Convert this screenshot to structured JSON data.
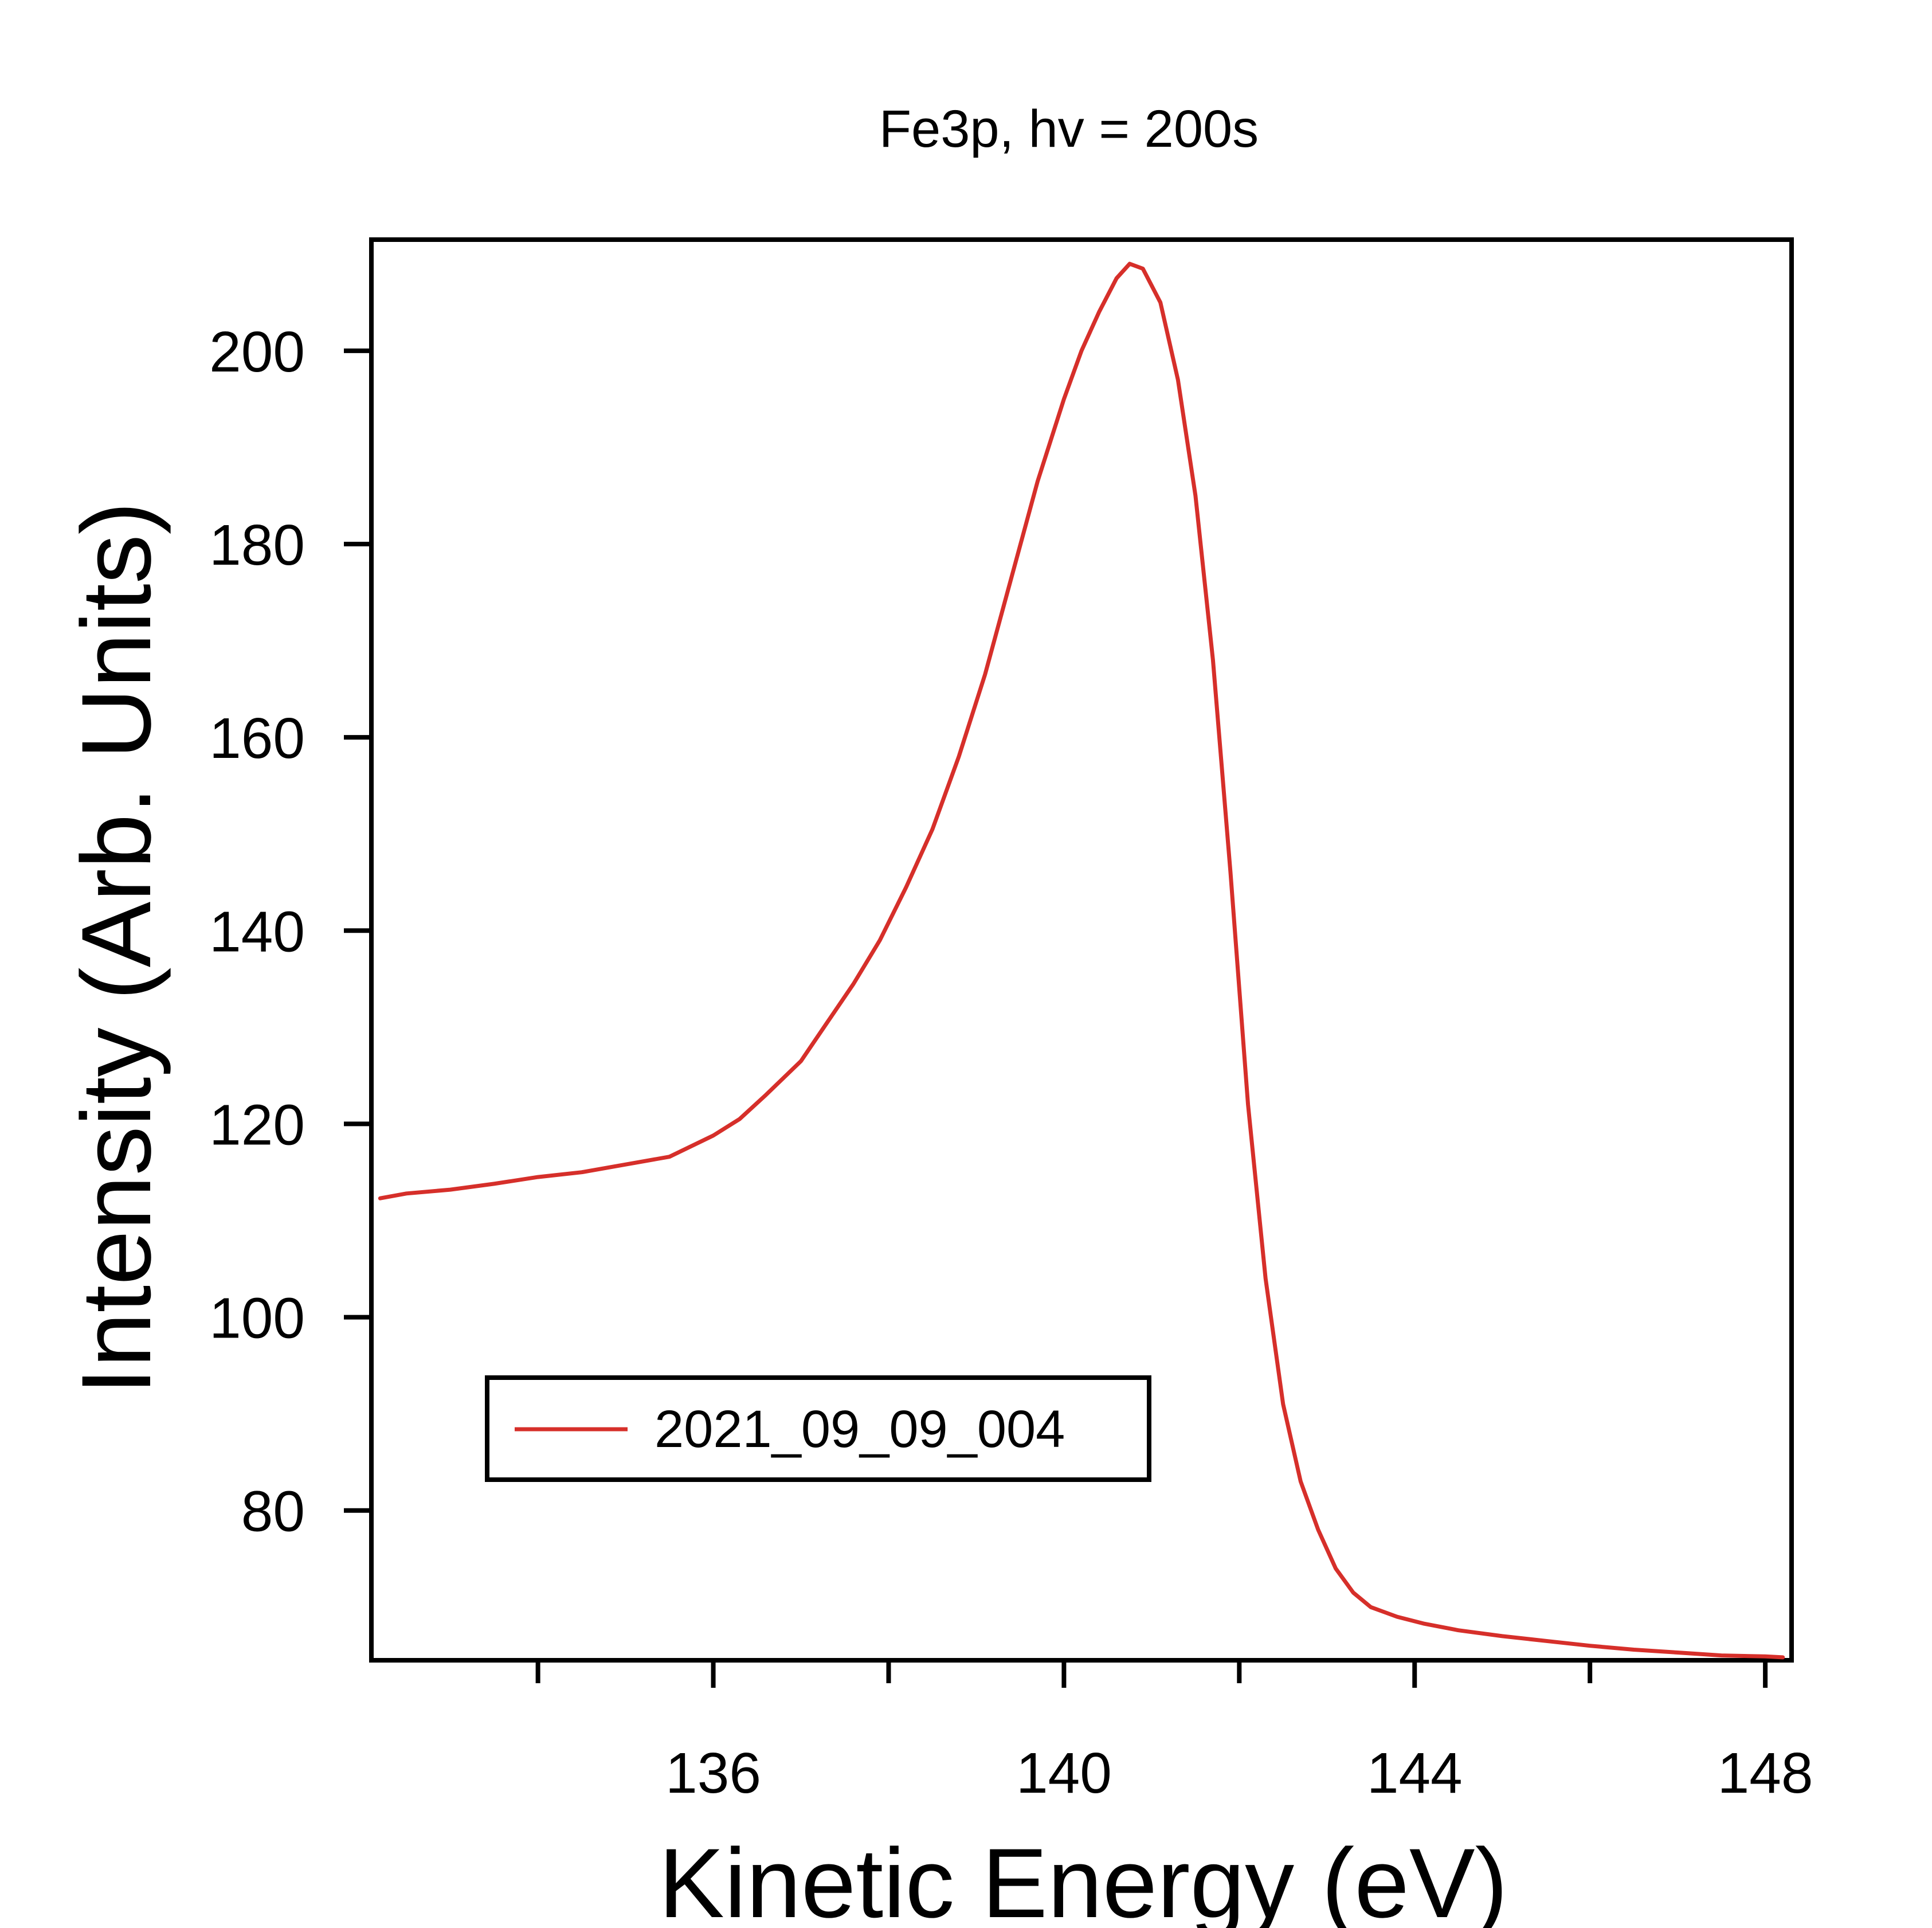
{
  "chart_data": {
    "type": "line",
    "title": "Fe3p, hv = 200s",
    "xlabel": "Kinetic Energy (eV)",
    "ylabel": "Intensity (Arb. Units)",
    "xlim": [
      132.1,
      148.3
    ],
    "ylim": [
      64.5,
      211.5
    ],
    "x_ticks_major": [
      136,
      140,
      144,
      148
    ],
    "x_ticks_minor": [
      134,
      138,
      142,
      146
    ],
    "y_ticks": [
      80,
      100,
      120,
      140,
      160,
      180,
      200
    ],
    "grid": false,
    "legend_position": "lower-left",
    "series": [
      {
        "name": "2021_09_09_004",
        "color": "#d62f2a",
        "x": [
          132.2,
          132.5,
          133.0,
          133.5,
          134.0,
          134.5,
          135.0,
          135.5,
          136.0,
          136.3,
          136.6,
          137.0,
          137.3,
          137.6,
          137.9,
          138.2,
          138.5,
          138.8,
          139.1,
          139.4,
          139.7,
          140.0,
          140.2,
          140.4,
          140.6,
          140.75,
          140.9,
          141.1,
          141.3,
          141.5,
          141.7,
          141.9,
          142.1,
          142.3,
          142.5,
          142.7,
          142.9,
          143.1,
          143.3,
          143.5,
          143.8,
          144.1,
          144.5,
          145.0,
          145.5,
          146.0,
          146.5,
          147.0,
          147.5,
          148.0,
          148.2
        ],
        "y": [
          112.3,
          112.8,
          113.2,
          113.8,
          114.5,
          115.0,
          115.8,
          116.6,
          118.8,
          120.5,
          123.0,
          126.5,
          130.5,
          134.5,
          139.0,
          144.5,
          150.5,
          158.0,
          166.5,
          176.5,
          186.5,
          195.0,
          200.0,
          204.0,
          207.5,
          209.0,
          208.5,
          205.0,
          197.0,
          185.0,
          168.0,
          146.0,
          122.0,
          104.0,
          91.0,
          83.0,
          78.0,
          74.0,
          71.5,
          70.0,
          69.0,
          68.3,
          67.6,
          67.0,
          66.5,
          66.0,
          65.6,
          65.3,
          65.0,
          64.9,
          64.8
        ]
      }
    ]
  }
}
